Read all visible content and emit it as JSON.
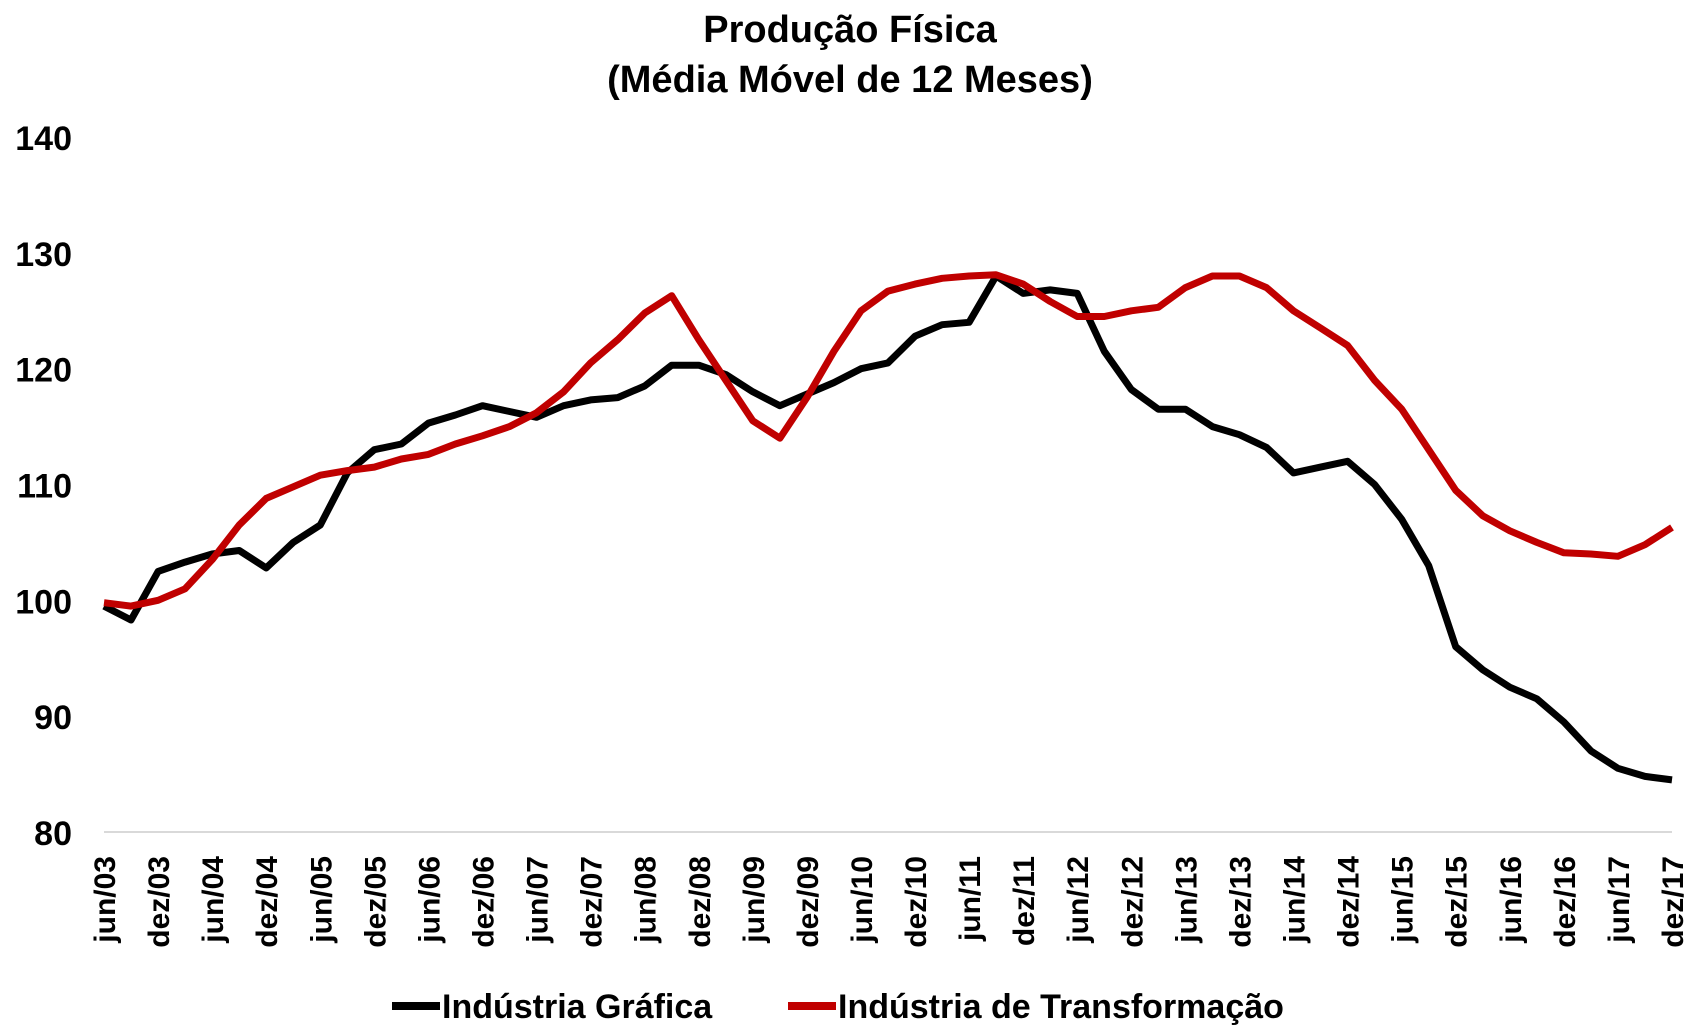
{
  "chart_data": {
    "type": "line",
    "title": "Produção Física",
    "subtitle": "(Média Móvel de 12 Meses)",
    "categories": [
      "jun/03",
      null,
      "dez/03",
      null,
      "jun/04",
      null,
      "dez/04",
      null,
      "jun/05",
      null,
      "dez/05",
      null,
      "jun/06",
      null,
      "dez/06",
      null,
      "jun/07",
      null,
      "dez/07",
      null,
      "jun/08",
      null,
      "dez/08",
      null,
      "jun/09",
      null,
      "dez/09",
      null,
      "jun/10",
      null,
      "dez/10",
      null,
      "jun/11",
      null,
      "dez/11",
      null,
      "jun/12",
      null,
      "dez/12",
      null,
      "jun/13",
      null,
      "dez/13",
      null,
      "jun/14",
      null,
      "dez/14",
      null,
      "jun/15",
      null,
      "dez/15",
      null,
      "jun/16",
      null,
      "dez/16",
      null,
      "jun/17",
      null,
      "dez/17"
    ],
    "series": [
      {
        "name": "Indústria Gráfica",
        "color": "#000000",
        "values": [
          99.5,
          98.3,
          102.5,
          103.3,
          104,
          104.3,
          102.8,
          105,
          106.5,
          111,
          113,
          113.5,
          115.3,
          116,
          116.8,
          116.3,
          115.8,
          116.8,
          117.3,
          117.5,
          118.5,
          120.3,
          120.3,
          119.5,
          118,
          116.8,
          117.8,
          118.8,
          120,
          120.5,
          122.8,
          123.8,
          124,
          128,
          126.5,
          126.8,
          126.5,
          121.5,
          118.2,
          116.5,
          116.5,
          115,
          114.3,
          113.2,
          111,
          111.5,
          112,
          110,
          107,
          103,
          96,
          94,
          92.5,
          91.5,
          89.5,
          87,
          85.5,
          84.8,
          84.5
        ]
      },
      {
        "name": "Indústria de Transformação",
        "color": "#c00000",
        "values": [
          99.8,
          99.5,
          100,
          101,
          103.5,
          106.5,
          108.8,
          109.8,
          110.8,
          111.2,
          111.5,
          112.2,
          112.6,
          113.5,
          114.2,
          115,
          116.2,
          118,
          120.5,
          122.5,
          124.8,
          126.3,
          122.5,
          119,
          115.5,
          114,
          117.5,
          121.5,
          125,
          126.7,
          127.3,
          127.8,
          128,
          128.1,
          127.3,
          125.8,
          124.5,
          124.5,
          125,
          125.3,
          127,
          128,
          128,
          127,
          125,
          123.5,
          122,
          119,
          116.5,
          113,
          109.5,
          107.3,
          106,
          105,
          104.1,
          104,
          103.8,
          104.8,
          106.3
        ]
      }
    ],
    "ylim": [
      80,
      140
    ],
    "yticks": [
      80,
      90,
      100,
      110,
      120,
      130,
      140
    ],
    "grid": false,
    "legend": "bottom"
  }
}
